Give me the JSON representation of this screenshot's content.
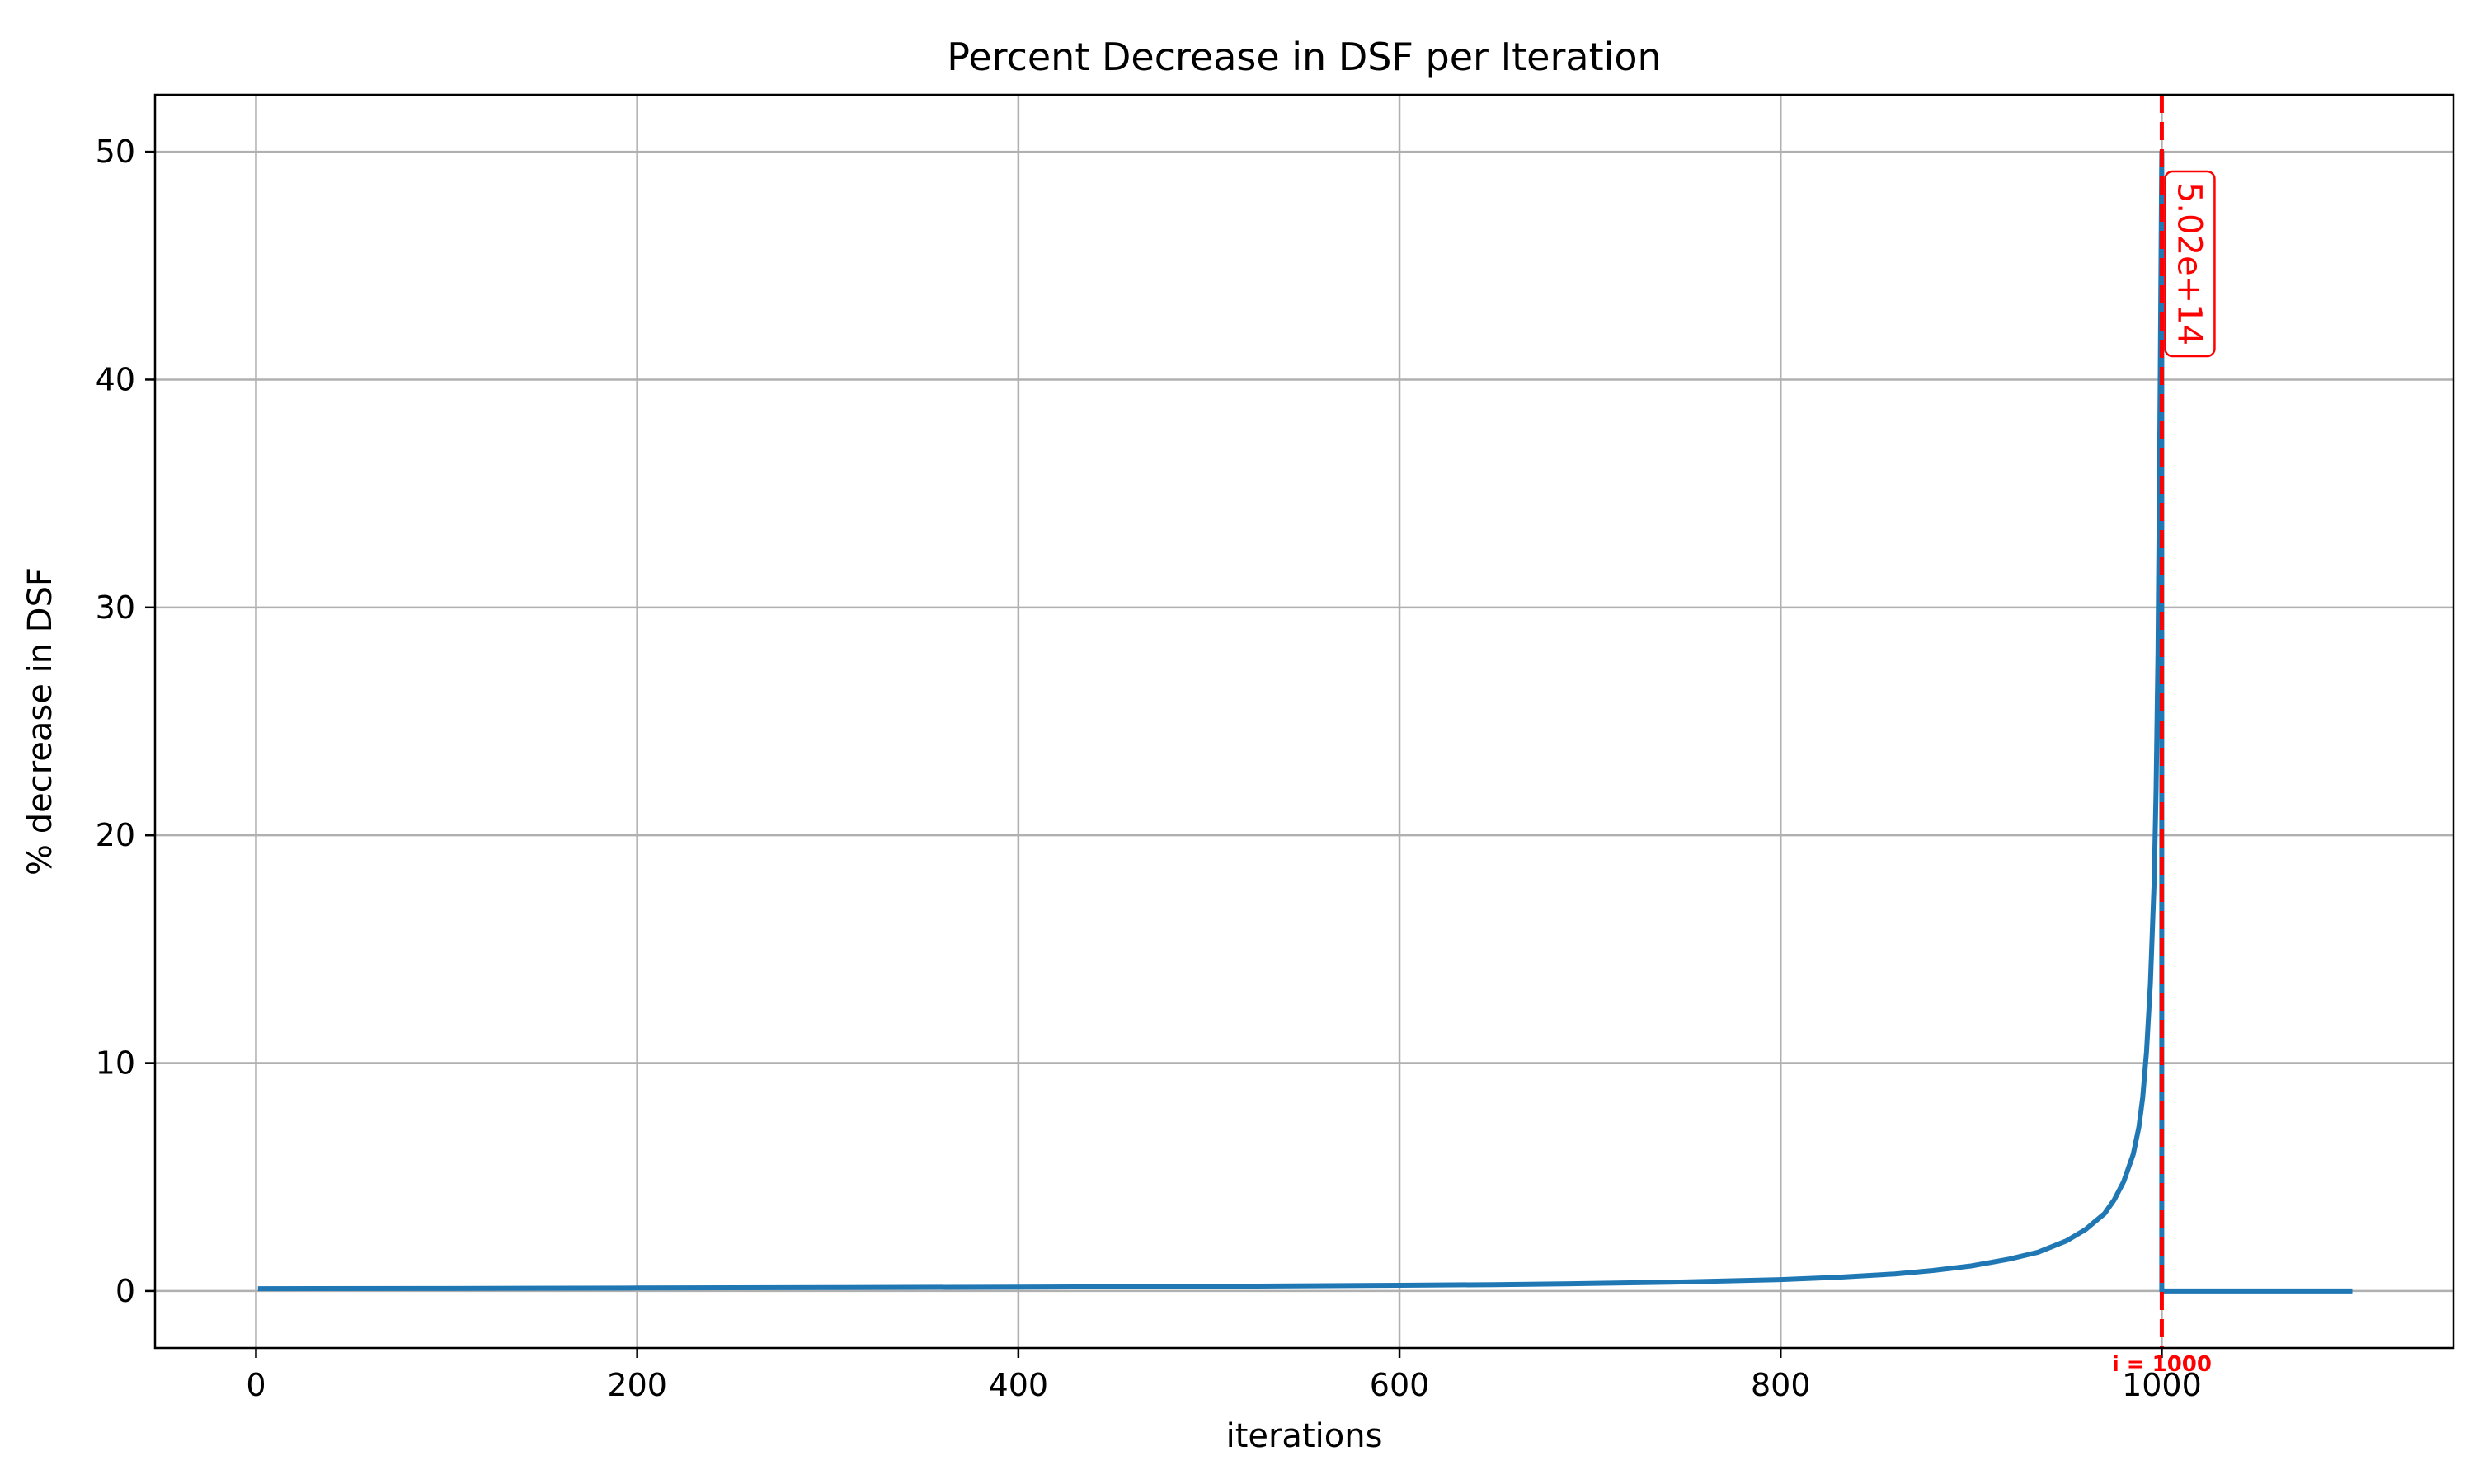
{
  "chart_data": {
    "type": "line",
    "title": "Percent Decrease in DSF per Iteration",
    "xlabel": "iterations",
    "ylabel": "% decrease in DSF",
    "xlim": [
      -53,
      1153
    ],
    "ylim": [
      -2.5,
      52.5
    ],
    "xticks": [
      0,
      200,
      400,
      600,
      800,
      1000
    ],
    "yticks": [
      0,
      10,
      20,
      30,
      40,
      50
    ],
    "grid": true,
    "series": [
      {
        "color": "#1f77b4",
        "x": [
          1,
          100,
          200,
          300,
          400,
          500,
          600,
          650,
          700,
          750,
          800,
          830,
          860,
          880,
          900,
          920,
          935,
          950,
          960,
          970,
          975,
          980,
          985,
          988,
          990,
          992,
          994,
          996,
          997,
          998,
          999,
          1000,
          1000,
          1050,
          1100
        ],
        "y": [
          0.1,
          0.11,
          0.13,
          0.15,
          0.17,
          0.2,
          0.25,
          0.28,
          0.33,
          0.4,
          0.5,
          0.6,
          0.75,
          0.9,
          1.1,
          1.4,
          1.7,
          2.2,
          2.7,
          3.4,
          4.0,
          4.8,
          6.0,
          7.2,
          8.5,
          10.5,
          13.5,
          18.0,
          22.0,
          28.0,
          38.0,
          50.0,
          0.0,
          0.0,
          0.0
        ]
      }
    ],
    "annotations": [
      {
        "x": 1000,
        "text": "5.02e+14",
        "color": "#ff0000"
      },
      {
        "x": 1000,
        "text": "i = 1000",
        "color": "#ff0000"
      }
    ]
  }
}
